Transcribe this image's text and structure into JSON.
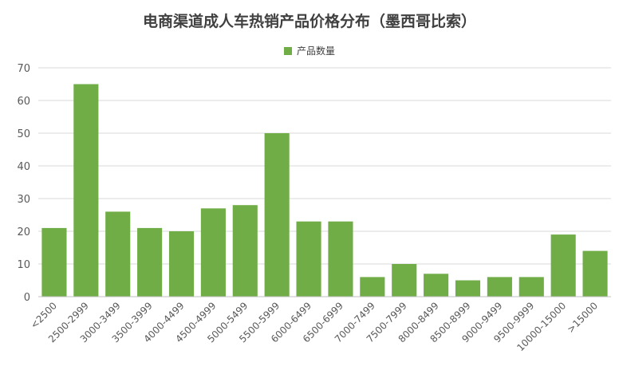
{
  "colors": {
    "bar": "#70ad47",
    "grid": "#d9d9d9",
    "axis": "#bfbfbf",
    "text": "#595959"
  },
  "chart_data": {
    "type": "bar",
    "title": "电商渠道成人车热销产品价格分布（墨西哥比索）",
    "legend": "产品数量",
    "legend_position": "top",
    "grid": true,
    "categories": [
      "<2500",
      "2500-2999",
      "3000-3499",
      "3500-3999",
      "4000-4499",
      "4500-4999",
      "5000-5499",
      "5500-5999",
      "6000-6499",
      "6500-6999",
      "7000-7499",
      "7500-7999",
      "8000-8499",
      "8500-8999",
      "9000-9499",
      "9500-9999",
      "10000-15000",
      ">15000"
    ],
    "series": [
      {
        "name": "产品数量",
        "values": [
          21,
          65,
          26,
          21,
          20,
          27,
          28,
          50,
          23,
          23,
          6,
          10,
          7,
          5,
          6,
          6,
          19,
          14
        ]
      }
    ],
    "ylim": [
      0,
      70
    ],
    "yticks": [
      0,
      10,
      20,
      30,
      40,
      50,
      60,
      70
    ]
  }
}
